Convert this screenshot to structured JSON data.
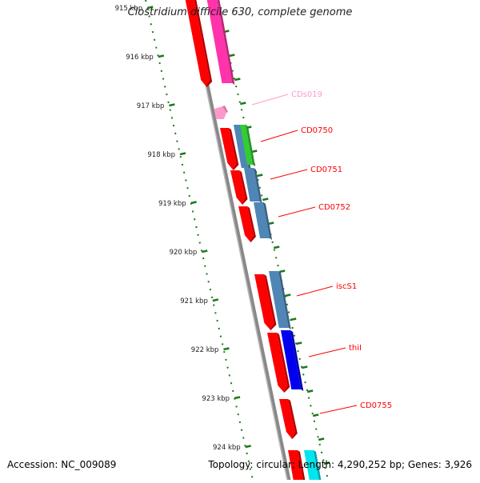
{
  "title": "Clostridium difficile 630, complete genome",
  "footer": {
    "accession": "Accession: NC_009089",
    "topology": "Topology: circular; Length: 4,290,252 bp; Genes: 3,926"
  },
  "ruler": {
    "labels": [
      "915 kbp",
      "916 kbp",
      "917 kbp",
      "918 kbp",
      "919 kbp",
      "920 kbp",
      "921 kbp",
      "922 kbp",
      "923 kbp",
      "924 kbp"
    ]
  },
  "genes": [
    {
      "label": "CDs019",
      "color": "#ff99cc"
    },
    {
      "label": "CD0750",
      "color": "#ff0000"
    },
    {
      "label": "CD0751",
      "color": "#ff0000"
    },
    {
      "label": "CD0752",
      "color": "#ff0000"
    },
    {
      "label": "iscS1",
      "color": "#ff0000"
    },
    {
      "label": "thiI",
      "color": "#ff0000"
    },
    {
      "label": "CD0755",
      "color": "#ff0000"
    }
  ],
  "colors": {
    "backbone": "#888888",
    "ruler": "#1a7a1a",
    "cds": "#ff0000",
    "pseudo": "#ff99cc",
    "magenta": "#ff33aa",
    "steelblue": "#4f86b6",
    "green": "#33cc33",
    "blue": "#0000ee",
    "cyan": "#00e5ee"
  }
}
